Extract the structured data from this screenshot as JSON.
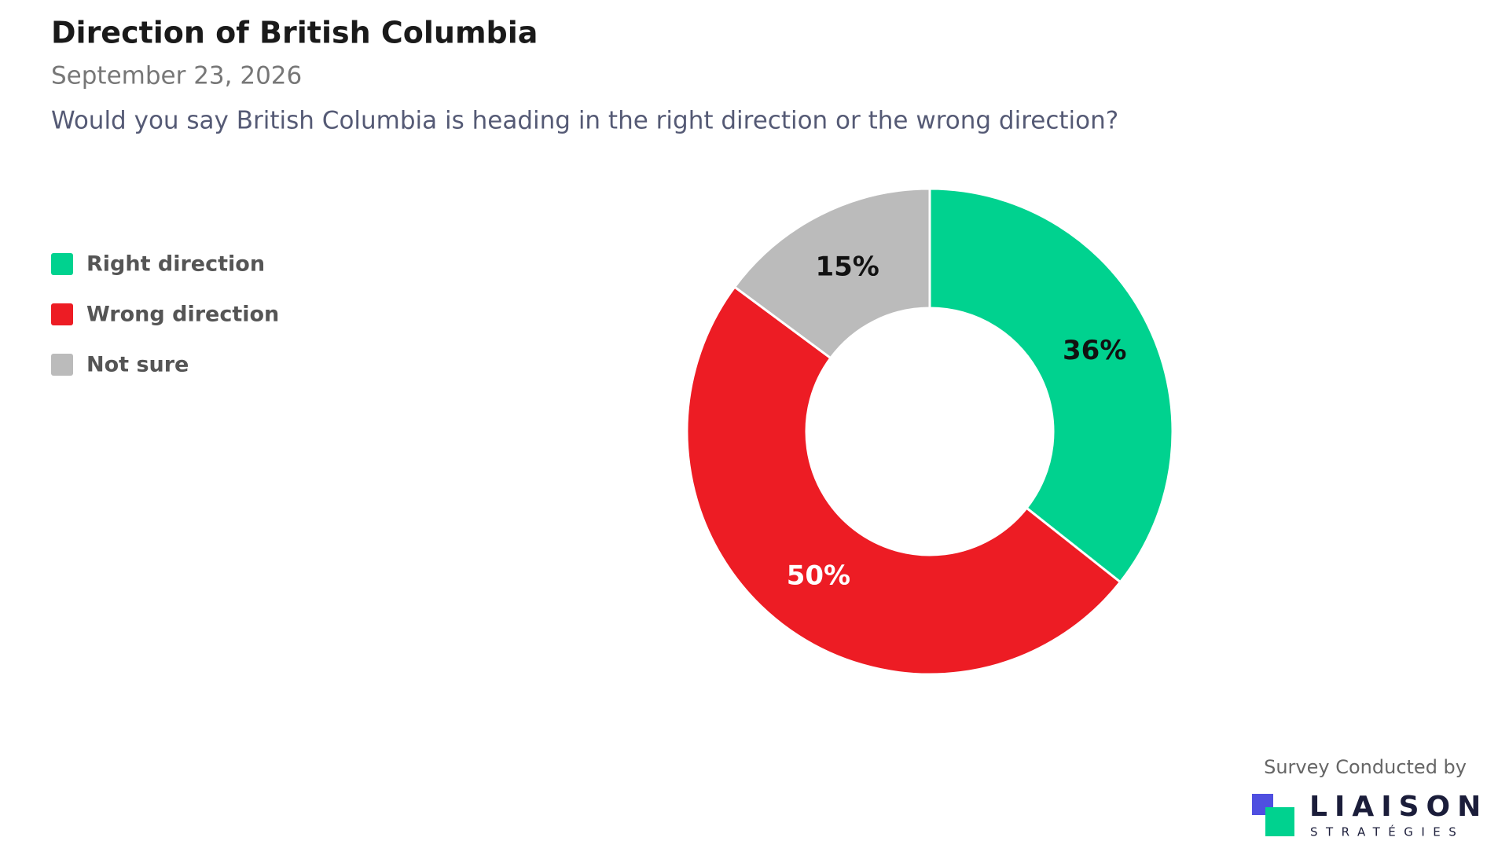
{
  "chart_data": {
    "type": "donut",
    "title": "Direction of British Columbia",
    "subtitle": "September 23, 2026",
    "question": "Would you say British Columbia is heading in the right direction or the wrong direction?",
    "categories": [
      "Right direction",
      "Wrong direction",
      "Not sure"
    ],
    "values": [
      36,
      50,
      15
    ],
    "value_labels": [
      "36%",
      "50%",
      "15%"
    ],
    "colors": [
      "#00d28f",
      "#ed1c24",
      "#bbbbbb"
    ],
    "value_label_colors": [
      "#111111",
      "#ffffff",
      "#111111"
    ],
    "legend": "top-left"
  },
  "footer": {
    "credit": "Survey Conducted by",
    "logo_name": "LIAISON",
    "logo_sub": "STRATÉGIES"
  }
}
